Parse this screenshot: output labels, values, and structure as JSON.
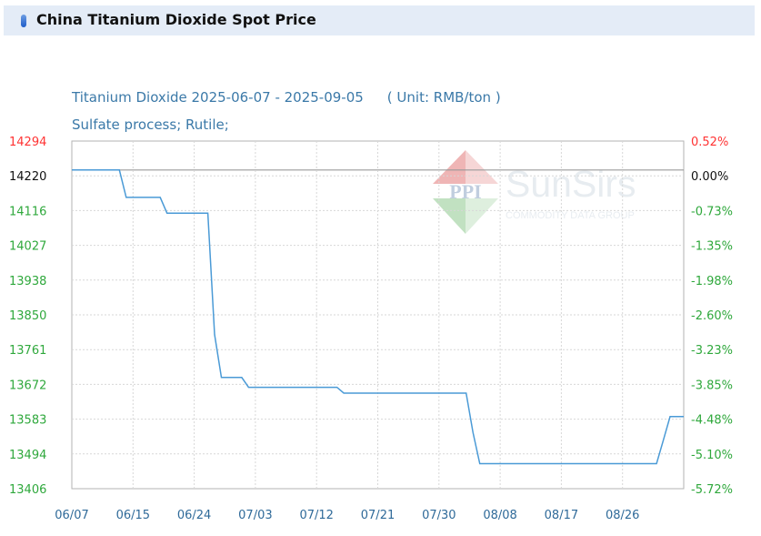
{
  "header": {
    "title": "China Titanium Dioxide Spot Price"
  },
  "chart_data": {
    "type": "line",
    "title": "Titanium Dioxide 2025-06-07 - 2025-09-05",
    "unit": "( Unit: RMB/ton )",
    "subtitle": "Sulfate process; Rutile;",
    "watermark": {
      "brand": "SunSirs",
      "tagline": "COMMODITY DATA GROUP",
      "logo_text": "PPI"
    },
    "xlabel": "",
    "ylabel": "",
    "x_tick_labels": [
      "06/07",
      "06/15",
      "06/24",
      "07/03",
      "07/12",
      "07/21",
      "07/30",
      "08/08",
      "08/17",
      "08/26"
    ],
    "y_left_ticks": [
      "14294",
      "14220",
      "14116",
      "14027",
      "13938",
      "13850",
      "13761",
      "13672",
      "13583",
      "13494",
      "13406"
    ],
    "y_right_ticks": [
      "0.52%",
      "0.00%",
      "-0.73%",
      "-1.35%",
      "-1.98%",
      "-2.60%",
      "-3.23%",
      "-3.85%",
      "-4.48%",
      "-5.10%",
      "-5.72%"
    ],
    "ylim": [
      13406,
      14294
    ],
    "baseline": 14220,
    "series": [
      {
        "x": [
          "2025-06-07",
          "2025-06-14",
          "2025-06-15",
          "2025-06-20",
          "2025-06-21",
          "2025-06-26",
          "2025-06-27",
          "2025-06-28",
          "2025-06-29",
          "2025-07-02",
          "2025-07-03",
          "2025-07-16",
          "2025-07-17",
          "2025-08-04",
          "2025-08-05",
          "2025-08-06",
          "2025-08-07",
          "2025-09-01",
          "2025-09-02",
          "2025-09-03",
          "2025-09-04",
          "2025-09-05"
        ],
        "y": [
          14220,
          14220,
          14150,
          14150,
          14110,
          14110,
          14110,
          13800,
          13690,
          13690,
          13665,
          13665,
          13650,
          13650,
          13550,
          13470,
          13470,
          13470,
          13530,
          13590,
          13590,
          13590
        ]
      }
    ],
    "colors": {
      "line": "#4a9ad6",
      "left_axis_up": "#ff3333",
      "left_axis_down": "#2fa83c",
      "subtitle": "#3b79a8",
      "x_ticks": "#2f6a99"
    },
    "grid": true
  }
}
